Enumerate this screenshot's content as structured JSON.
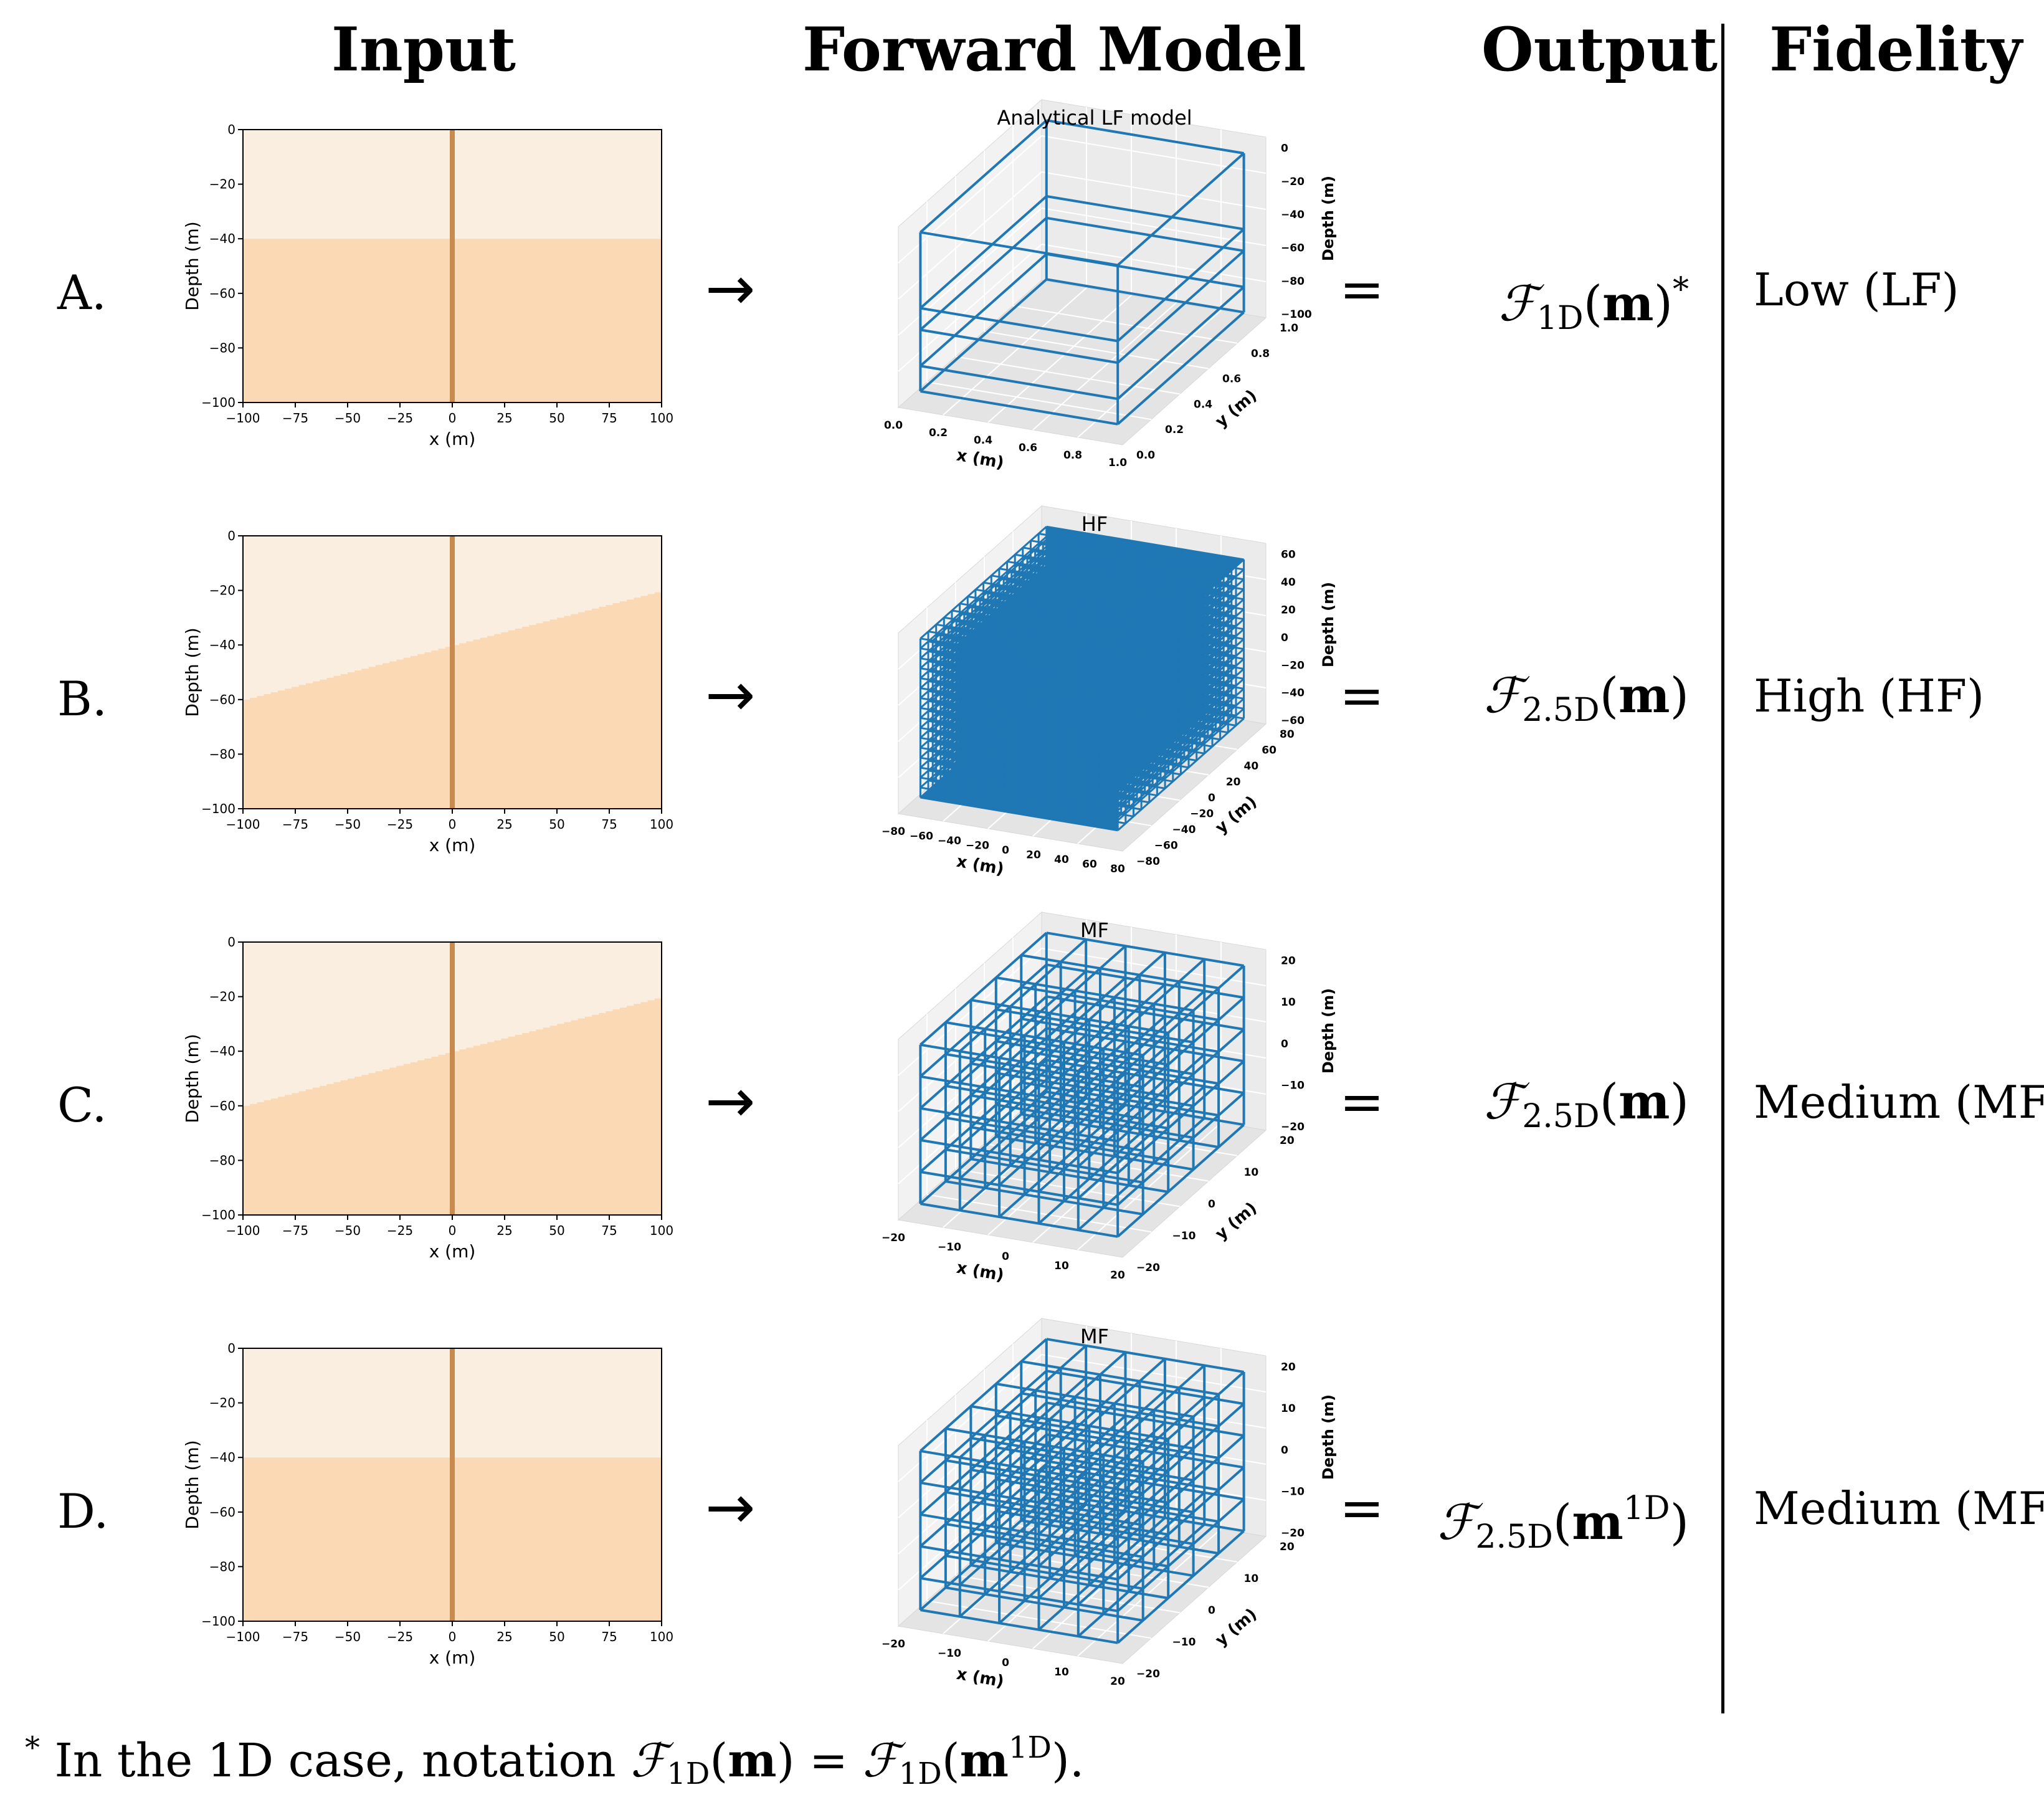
{
  "headers": {
    "input": "Input",
    "forward_model": "Forward Model",
    "output": "Output",
    "fidelity": "Fidelity"
  },
  "colors": {
    "light_layer": "#faeee1",
    "dark_layer": "#fcd9b5",
    "well": "#c98a4e",
    "grid": "#1f77b4"
  },
  "rows": [
    {
      "label": "A.",
      "input_plot": {
        "ylabel": "Depth (m)",
        "xlabel": "x (m)",
        "xticks": [
          "−100",
          "−75",
          "−50",
          "−25",
          "0",
          "25",
          "50",
          "75",
          "100"
        ],
        "yticks": [
          "0",
          "−20",
          "−40",
          "−60",
          "−80",
          "−100"
        ],
        "interface_depth_left": -40,
        "interface_depth_right": -40
      },
      "model_plot": {
        "title": "Analytical LF model",
        "style": "lf",
        "xlabel": "x (m)",
        "ylabel": "y (m)",
        "zlabel": "Depth (m)",
        "xticks": [
          "0.0",
          "0.2",
          "0.4",
          "0.6",
          "0.8",
          "1.0"
        ],
        "yticks": [
          "0.0",
          "0.2",
          "0.4",
          "0.6",
          "0.8",
          "1.0"
        ],
        "zticks": [
          "0",
          "−20",
          "−40",
          "−60",
          "−80",
          "−100"
        ]
      },
      "arrow": "→",
      "equals": "=",
      "output": {
        "op": "ℱ",
        "sub": "1D",
        "lp": "(",
        "arg": "m",
        "argsup": "",
        "rp": ")",
        "post": "*"
      },
      "fidelity": "Low (LF)"
    },
    {
      "label": "B.",
      "input_plot": {
        "ylabel": "Depth (m)",
        "xlabel": "x (m)",
        "xticks": [
          "−100",
          "−75",
          "−50",
          "−25",
          "0",
          "25",
          "50",
          "75",
          "100"
        ],
        "yticks": [
          "0",
          "−20",
          "−40",
          "−60",
          "−80",
          "−100"
        ],
        "interface_depth_left": -60,
        "interface_depth_right": -20
      },
      "model_plot": {
        "title": "HF",
        "style": "hf",
        "xlabel": "x (m)",
        "ylabel": "y (m)",
        "zlabel": "Depth (m)",
        "xticks": [
          "−80",
          "−60",
          "−40",
          "−20",
          "0",
          "20",
          "40",
          "60",
          "80"
        ],
        "yticks": [
          "−80",
          "−60",
          "−40",
          "−20",
          "0",
          "20",
          "40",
          "60",
          "80"
        ],
        "zticks": [
          "60",
          "40",
          "20",
          "0",
          "−20",
          "−40",
          "−60"
        ]
      },
      "arrow": "→",
      "equals": "=",
      "output": {
        "op": "ℱ",
        "sub": "2.5D",
        "lp": "(",
        "arg": "m",
        "argsup": "",
        "rp": ")",
        "post": ""
      },
      "fidelity": "High (HF)"
    },
    {
      "label": "C.",
      "input_plot": {
        "ylabel": "Depth (m)",
        "xlabel": "x (m)",
        "xticks": [
          "−100",
          "−75",
          "−50",
          "−25",
          "0",
          "25",
          "50",
          "75",
          "100"
        ],
        "yticks": [
          "0",
          "−20",
          "−40",
          "−60",
          "−80",
          "−100"
        ],
        "interface_depth_left": -60,
        "interface_depth_right": -20
      },
      "model_plot": {
        "title": "MF",
        "style": "mf",
        "xlabel": "x (m)",
        "ylabel": "y (m)",
        "zlabel": "Depth (m)",
        "xticks": [
          "−20",
          "−10",
          "0",
          "10",
          "20"
        ],
        "yticks": [
          "−20",
          "−10",
          "0",
          "10",
          "20"
        ],
        "zticks": [
          "20",
          "10",
          "0",
          "−10",
          "−20"
        ]
      },
      "arrow": "→",
      "equals": "=",
      "output": {
        "op": "ℱ",
        "sub": "2.5D",
        "lp": "(",
        "arg": "m",
        "argsup": "",
        "rp": ")",
        "post": ""
      },
      "fidelity": "Medium (MF)"
    },
    {
      "label": "D.",
      "input_plot": {
        "ylabel": "Depth (m)",
        "xlabel": "x (m)",
        "xticks": [
          "−100",
          "−75",
          "−50",
          "−25",
          "0",
          "25",
          "50",
          "75",
          "100"
        ],
        "yticks": [
          "0",
          "−20",
          "−40",
          "−60",
          "−80",
          "−100"
        ],
        "interface_depth_left": -40,
        "interface_depth_right": -40
      },
      "model_plot": {
        "title": "MF",
        "style": "mf",
        "xlabel": "x (m)",
        "ylabel": "y (m)",
        "zlabel": "Depth (m)",
        "xticks": [
          "−20",
          "−10",
          "0",
          "10",
          "20"
        ],
        "yticks": [
          "−20",
          "−10",
          "0",
          "10",
          "20"
        ],
        "zticks": [
          "20",
          "10",
          "0",
          "−10",
          "−20"
        ]
      },
      "arrow": "→",
      "equals": "=",
      "output": {
        "op": "ℱ",
        "sub": "2.5D",
        "lp": "(",
        "arg": "m",
        "argsup": "1D",
        "rp": ")",
        "post": ""
      },
      "fidelity": "Medium (MF)"
    }
  ],
  "footnote": {
    "star": "*",
    "text": " In the 1D case, notation ",
    "op": "ℱ",
    "sub": "1D",
    "lp": "(",
    "arg": "m",
    "rp": ")",
    "eq": " = ",
    "sup": "1D",
    "end": "."
  }
}
